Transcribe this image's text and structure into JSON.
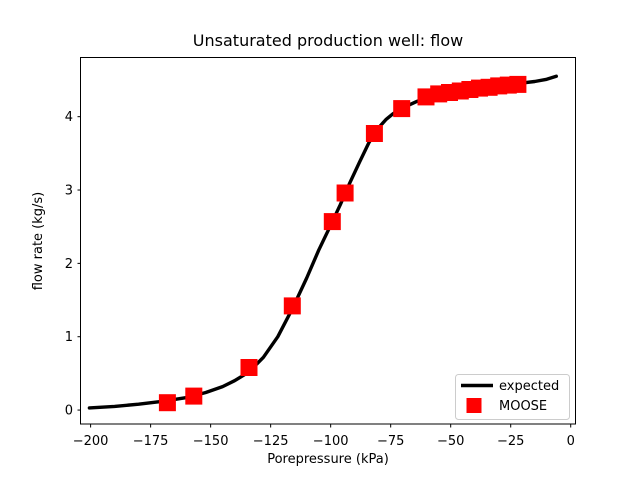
{
  "chart_data": {
    "type": "line",
    "title": "Unsaturated production well: flow",
    "xlabel": "Porepressure (kPa)",
    "ylabel": "flow rate (kg/s)",
    "xlim": [
      -204,
      2.2
    ],
    "ylim": [
      -0.19,
      4.8
    ],
    "grid": false,
    "background_color": "#ffffff",
    "xticks": {
      "values": [
        -200,
        -175,
        -150,
        -125,
        -100,
        -75,
        -50,
        -25,
        0
      ],
      "labels": [
        "−200",
        "−175",
        "−150",
        "−125",
        "−100",
        "−75",
        "−50",
        "−25",
        "0"
      ]
    },
    "yticks": {
      "values": [
        0,
        1,
        2,
        3,
        4
      ],
      "labels": [
        "0",
        "1",
        "2",
        "3",
        "4"
      ]
    },
    "legend": {
      "position": "lower right",
      "entries": [
        {
          "label": "expected",
          "type": "line",
          "color": "#000000"
        },
        {
          "label": "MOOSE",
          "type": "square",
          "color": "#ff0000"
        }
      ]
    },
    "series": [
      {
        "name": "expected",
        "type": "line",
        "color": "#000000",
        "linewidth": 3.4,
        "points": [
          [
            -200.5,
            0.03
          ],
          [
            -190,
            0.05
          ],
          [
            -180,
            0.08
          ],
          [
            -170,
            0.12
          ],
          [
            -160,
            0.17
          ],
          [
            -152,
            0.24
          ],
          [
            -145,
            0.32
          ],
          [
            -140,
            0.4
          ],
          [
            -134,
            0.52
          ],
          [
            -128,
            0.72
          ],
          [
            -122,
            1.0
          ],
          [
            -116,
            1.38
          ],
          [
            -110,
            1.8
          ],
          [
            -105,
            2.18
          ],
          [
            -100,
            2.52
          ],
          [
            -96,
            2.8
          ],
          [
            -92,
            3.1
          ],
          [
            -88,
            3.38
          ],
          [
            -84,
            3.65
          ],
          [
            -80,
            3.85
          ],
          [
            -77,
            3.96
          ],
          [
            -74,
            4.04
          ],
          [
            -71,
            4.1
          ],
          [
            -68,
            4.15
          ],
          [
            -64,
            4.21
          ],
          [
            -60,
            4.26
          ],
          [
            -55,
            4.31
          ],
          [
            -50,
            4.34
          ],
          [
            -45,
            4.36
          ],
          [
            -40,
            4.38
          ],
          [
            -35,
            4.4
          ],
          [
            -30,
            4.42
          ],
          [
            -25,
            4.44
          ],
          [
            -20,
            4.46
          ],
          [
            -15,
            4.48
          ],
          [
            -10,
            4.51
          ],
          [
            -6,
            4.55
          ]
        ]
      },
      {
        "name": "MOOSE",
        "type": "scatter",
        "marker": "square",
        "color": "#ff0000",
        "markersize": 17,
        "points": [
          [
            -168,
            0.1
          ],
          [
            -157,
            0.19
          ],
          [
            -134,
            0.58
          ],
          [
            -116,
            1.42
          ],
          [
            -99.3,
            2.57
          ],
          [
            -94,
            2.96
          ],
          [
            -81.8,
            3.77
          ],
          [
            -70.4,
            4.11
          ],
          [
            -60.3,
            4.27
          ],
          [
            -55,
            4.31
          ],
          [
            -50.5,
            4.33
          ],
          [
            -46,
            4.35
          ],
          [
            -42,
            4.37
          ],
          [
            -38,
            4.39
          ],
          [
            -34,
            4.4
          ],
          [
            -30,
            4.42
          ],
          [
            -26,
            4.43
          ],
          [
            -22,
            4.44
          ]
        ]
      }
    ]
  }
}
